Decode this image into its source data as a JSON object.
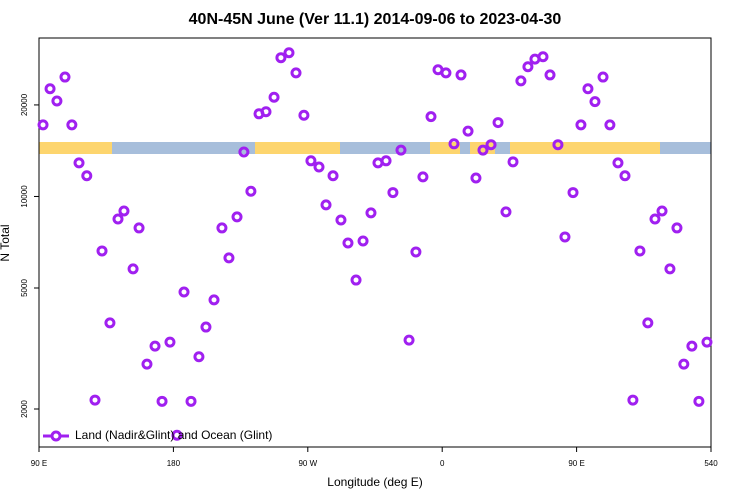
{
  "chart_data": {
    "type": "scatter",
    "title": "40N-45N June (Ver 11.1)   2014-09-06 to 2023-04-30",
    "x_label": "Longitude (deg E)",
    "y_label": "N Total",
    "log_y": true,
    "legend": "bottomleft",
    "xlim": [
      90,
      540
    ],
    "ylim": [
      1500,
      33200
    ],
    "xticks": [
      {
        "value": 90,
        "label": "90 E"
      },
      180,
      {
        "value": 270,
        "label": "90 W"
      },
      {
        "value": 360,
        "label": "0"
      },
      {
        "value": 450,
        "label": "90 E"
      },
      540
    ],
    "yticks": [
      2000,
      5000,
      10000,
      20000
    ],
    "series": [
      {
        "name": "Land (Nadir&Glint) and Ocean (Glint)",
        "color": "#a020f0",
        "x": [
          92.7,
          97.4,
          102,
          107.4,
          112,
          116.8,
          122,
          127.5,
          132.2,
          137.5,
          142.9,
          146.9,
          157,
          153,
          162.3,
          167.7,
          172.4,
          177.7,
          182.4,
          187.1,
          191.8,
          197.1,
          201.8,
          207.2,
          212.5,
          217.2,
          222.6,
          227.2,
          231.9,
          237.3,
          242,
          247.4,
          252,
          257.4,
          262.1,
          267.4,
          272.1,
          277.5,
          282.2,
          286.9,
          292.2,
          296.9,
          302.3,
          307,
          312.3,
          317,
          322.4,
          327,
          332.4,
          337.8,
          342.4,
          347.1,
          352.5,
          357.2,
          362.5,
          367.9,
          372.6,
          377.3,
          382.6,
          387.3,
          392.7,
          397.4,
          402.7,
          407.4,
          412.7,
          417.4,
          422.1,
          427.5,
          432.2,
          437.5,
          442.2,
          447.6,
          452.9,
          457.6,
          462.3,
          467.7,
          472.3,
          477.7,
          482.4,
          487.7,
          492.4,
          497.7,
          502.5,
          507.2,
          512.5,
          517.2,
          521.8,
          527.2,
          531.9,
          537.3
        ],
        "values": [
          17200,
          22600,
          20600,
          24700,
          17200,
          12900,
          11700,
          2140,
          6620,
          3840,
          8430,
          8960,
          7880,
          5780,
          2810,
          3220,
          2120,
          3320,
          1640,
          4850,
          2120,
          2970,
          3720,
          4570,
          7880,
          6280,
          8570,
          14000,
          10400,
          18700,
          19000,
          21200,
          28600,
          29700,
          25500,
          18500,
          13100,
          12500,
          9380,
          11700,
          8370,
          7030,
          5310,
          7140,
          8830,
          12900,
          13100,
          10300,
          14200,
          3370,
          6570,
          11600,
          18300,
          26100,
          25500,
          14900,
          25100,
          16400,
          11500,
          14200,
          14800,
          17500,
          8900,
          13000,
          24000,
          26700,
          28300,
          28800,
          25100,
          14800,
          7360,
          10300,
          17200,
          22600,
          20500,
          24700,
          17200,
          12900,
          11700,
          2140,
          6620,
          3840,
          8430,
          8960,
          5780,
          7880,
          2810,
          3220,
          2120,
          3320
        ]
      }
    ]
  }
}
